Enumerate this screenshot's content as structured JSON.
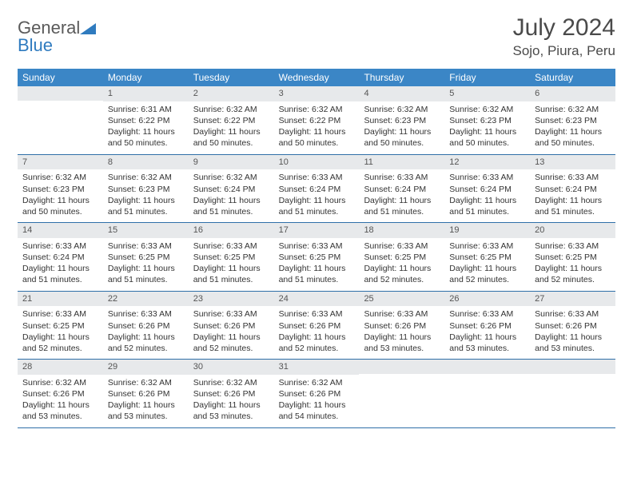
{
  "logo": {
    "part1": "General",
    "part2": "Blue"
  },
  "title": "July 2024",
  "location": "Sojo, Piura, Peru",
  "colors": {
    "header_bg": "#3b86c6",
    "header_text": "#ffffff",
    "daynum_bg": "#e7e9eb",
    "daynum_text": "#555555",
    "body_text": "#333333",
    "rule": "#2f6fa8",
    "logo_gray": "#5a5a5a",
    "logo_blue": "#2f7bbf"
  },
  "weekdays": [
    "Sunday",
    "Monday",
    "Tuesday",
    "Wednesday",
    "Thursday",
    "Friday",
    "Saturday"
  ],
  "weeks": [
    [
      null,
      {
        "n": "1",
        "sr": "Sunrise: 6:31 AM",
        "ss": "Sunset: 6:22 PM",
        "d1": "Daylight: 11 hours",
        "d2": "and 50 minutes."
      },
      {
        "n": "2",
        "sr": "Sunrise: 6:32 AM",
        "ss": "Sunset: 6:22 PM",
        "d1": "Daylight: 11 hours",
        "d2": "and 50 minutes."
      },
      {
        "n": "3",
        "sr": "Sunrise: 6:32 AM",
        "ss": "Sunset: 6:22 PM",
        "d1": "Daylight: 11 hours",
        "d2": "and 50 minutes."
      },
      {
        "n": "4",
        "sr": "Sunrise: 6:32 AM",
        "ss": "Sunset: 6:23 PM",
        "d1": "Daylight: 11 hours",
        "d2": "and 50 minutes."
      },
      {
        "n": "5",
        "sr": "Sunrise: 6:32 AM",
        "ss": "Sunset: 6:23 PM",
        "d1": "Daylight: 11 hours",
        "d2": "and 50 minutes."
      },
      {
        "n": "6",
        "sr": "Sunrise: 6:32 AM",
        "ss": "Sunset: 6:23 PM",
        "d1": "Daylight: 11 hours",
        "d2": "and 50 minutes."
      }
    ],
    [
      {
        "n": "7",
        "sr": "Sunrise: 6:32 AM",
        "ss": "Sunset: 6:23 PM",
        "d1": "Daylight: 11 hours",
        "d2": "and 50 minutes."
      },
      {
        "n": "8",
        "sr": "Sunrise: 6:32 AM",
        "ss": "Sunset: 6:23 PM",
        "d1": "Daylight: 11 hours",
        "d2": "and 51 minutes."
      },
      {
        "n": "9",
        "sr": "Sunrise: 6:32 AM",
        "ss": "Sunset: 6:24 PM",
        "d1": "Daylight: 11 hours",
        "d2": "and 51 minutes."
      },
      {
        "n": "10",
        "sr": "Sunrise: 6:33 AM",
        "ss": "Sunset: 6:24 PM",
        "d1": "Daylight: 11 hours",
        "d2": "and 51 minutes."
      },
      {
        "n": "11",
        "sr": "Sunrise: 6:33 AM",
        "ss": "Sunset: 6:24 PM",
        "d1": "Daylight: 11 hours",
        "d2": "and 51 minutes."
      },
      {
        "n": "12",
        "sr": "Sunrise: 6:33 AM",
        "ss": "Sunset: 6:24 PM",
        "d1": "Daylight: 11 hours",
        "d2": "and 51 minutes."
      },
      {
        "n": "13",
        "sr": "Sunrise: 6:33 AM",
        "ss": "Sunset: 6:24 PM",
        "d1": "Daylight: 11 hours",
        "d2": "and 51 minutes."
      }
    ],
    [
      {
        "n": "14",
        "sr": "Sunrise: 6:33 AM",
        "ss": "Sunset: 6:24 PM",
        "d1": "Daylight: 11 hours",
        "d2": "and 51 minutes."
      },
      {
        "n": "15",
        "sr": "Sunrise: 6:33 AM",
        "ss": "Sunset: 6:25 PM",
        "d1": "Daylight: 11 hours",
        "d2": "and 51 minutes."
      },
      {
        "n": "16",
        "sr": "Sunrise: 6:33 AM",
        "ss": "Sunset: 6:25 PM",
        "d1": "Daylight: 11 hours",
        "d2": "and 51 minutes."
      },
      {
        "n": "17",
        "sr": "Sunrise: 6:33 AM",
        "ss": "Sunset: 6:25 PM",
        "d1": "Daylight: 11 hours",
        "d2": "and 51 minutes."
      },
      {
        "n": "18",
        "sr": "Sunrise: 6:33 AM",
        "ss": "Sunset: 6:25 PM",
        "d1": "Daylight: 11 hours",
        "d2": "and 52 minutes."
      },
      {
        "n": "19",
        "sr": "Sunrise: 6:33 AM",
        "ss": "Sunset: 6:25 PM",
        "d1": "Daylight: 11 hours",
        "d2": "and 52 minutes."
      },
      {
        "n": "20",
        "sr": "Sunrise: 6:33 AM",
        "ss": "Sunset: 6:25 PM",
        "d1": "Daylight: 11 hours",
        "d2": "and 52 minutes."
      }
    ],
    [
      {
        "n": "21",
        "sr": "Sunrise: 6:33 AM",
        "ss": "Sunset: 6:25 PM",
        "d1": "Daylight: 11 hours",
        "d2": "and 52 minutes."
      },
      {
        "n": "22",
        "sr": "Sunrise: 6:33 AM",
        "ss": "Sunset: 6:26 PM",
        "d1": "Daylight: 11 hours",
        "d2": "and 52 minutes."
      },
      {
        "n": "23",
        "sr": "Sunrise: 6:33 AM",
        "ss": "Sunset: 6:26 PM",
        "d1": "Daylight: 11 hours",
        "d2": "and 52 minutes."
      },
      {
        "n": "24",
        "sr": "Sunrise: 6:33 AM",
        "ss": "Sunset: 6:26 PM",
        "d1": "Daylight: 11 hours",
        "d2": "and 52 minutes."
      },
      {
        "n": "25",
        "sr": "Sunrise: 6:33 AM",
        "ss": "Sunset: 6:26 PM",
        "d1": "Daylight: 11 hours",
        "d2": "and 53 minutes."
      },
      {
        "n": "26",
        "sr": "Sunrise: 6:33 AM",
        "ss": "Sunset: 6:26 PM",
        "d1": "Daylight: 11 hours",
        "d2": "and 53 minutes."
      },
      {
        "n": "27",
        "sr": "Sunrise: 6:33 AM",
        "ss": "Sunset: 6:26 PM",
        "d1": "Daylight: 11 hours",
        "d2": "and 53 minutes."
      }
    ],
    [
      {
        "n": "28",
        "sr": "Sunrise: 6:32 AM",
        "ss": "Sunset: 6:26 PM",
        "d1": "Daylight: 11 hours",
        "d2": "and 53 minutes."
      },
      {
        "n": "29",
        "sr": "Sunrise: 6:32 AM",
        "ss": "Sunset: 6:26 PM",
        "d1": "Daylight: 11 hours",
        "d2": "and 53 minutes."
      },
      {
        "n": "30",
        "sr": "Sunrise: 6:32 AM",
        "ss": "Sunset: 6:26 PM",
        "d1": "Daylight: 11 hours",
        "d2": "and 53 minutes."
      },
      {
        "n": "31",
        "sr": "Sunrise: 6:32 AM",
        "ss": "Sunset: 6:26 PM",
        "d1": "Daylight: 11 hours",
        "d2": "and 54 minutes."
      },
      null,
      null,
      null
    ]
  ]
}
